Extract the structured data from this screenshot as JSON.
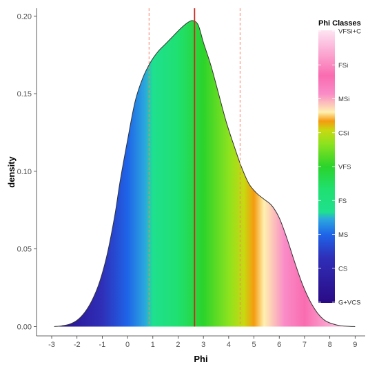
{
  "chart_data": {
    "type": "area",
    "xlabel": "Phi",
    "ylabel": "density",
    "xlim": [
      -3,
      9
    ],
    "ylim": [
      0,
      0.2
    ],
    "x_ticks": [
      "-3",
      "-2",
      "-1",
      "0",
      "1",
      "2",
      "3",
      "4",
      "5",
      "6",
      "7",
      "8",
      "9"
    ],
    "y_ticks": [
      "0.00",
      "0.05",
      "0.10",
      "0.15",
      "0.20"
    ],
    "grid": false,
    "legend_position": "right",
    "x": [
      -2.9,
      -2.6,
      -2.3,
      -2.0,
      -1.7,
      -1.4,
      -1.1,
      -0.8,
      -0.5,
      -0.3,
      0.0,
      0.3,
      0.6,
      0.9,
      1.2,
      1.5,
      1.8,
      2.1,
      2.4,
      2.6,
      2.8,
      3.0,
      3.3,
      3.6,
      3.9,
      4.2,
      4.5,
      4.8,
      5.1,
      5.4,
      5.7,
      6.0,
      6.3,
      6.6,
      6.9,
      7.2,
      7.5,
      7.8,
      8.1,
      8.4,
      8.7,
      9.0
    ],
    "density": [
      0.0,
      0.0005,
      0.0015,
      0.004,
      0.009,
      0.017,
      0.029,
      0.047,
      0.072,
      0.093,
      0.12,
      0.145,
      0.16,
      0.17,
      0.177,
      0.182,
      0.187,
      0.192,
      0.196,
      0.197,
      0.194,
      0.183,
      0.168,
      0.15,
      0.132,
      0.117,
      0.103,
      0.092,
      0.086,
      0.082,
      0.078,
      0.07,
      0.057,
      0.042,
      0.028,
      0.017,
      0.009,
      0.004,
      0.0018,
      0.0006,
      0.0002,
      0.0
    ],
    "vlines": [
      {
        "x": 0.85,
        "style": "dashed"
      },
      {
        "x": 2.65,
        "style": "solid"
      },
      {
        "x": 4.45,
        "style": "dashed"
      }
    ],
    "legend": {
      "title": "Phi Classes",
      "labels": [
        "VFSi+C",
        "FSi",
        "MSi",
        "CSi",
        "VFS",
        "FS",
        "MS",
        "CS",
        "G+VCS"
      ]
    },
    "color_stops": [
      {
        "x": -3.0,
        "color": "#2a0a85"
      },
      {
        "x": -1.0,
        "color": "#2f2fb8"
      },
      {
        "x": 0.0,
        "color": "#1e64e8"
      },
      {
        "x": 0.7,
        "color": "#2ba8de"
      },
      {
        "x": 1.0,
        "color": "#1fe08e"
      },
      {
        "x": 2.0,
        "color": "#1fe070"
      },
      {
        "x": 3.0,
        "color": "#2bd32b"
      },
      {
        "x": 4.0,
        "color": "#8ce21f"
      },
      {
        "x": 4.6,
        "color": "#c8d910"
      },
      {
        "x": 5.0,
        "color": "#f59a10"
      },
      {
        "x": 5.4,
        "color": "#fff0b0"
      },
      {
        "x": 6.2,
        "color": "#f98cc8"
      },
      {
        "x": 7.0,
        "color": "#f96cb0"
      },
      {
        "x": 9.0,
        "color": "#fde4f3"
      }
    ],
    "vline_colors": {
      "dashed": "#ff7f66",
      "solid": "#c62a1e"
    }
  }
}
